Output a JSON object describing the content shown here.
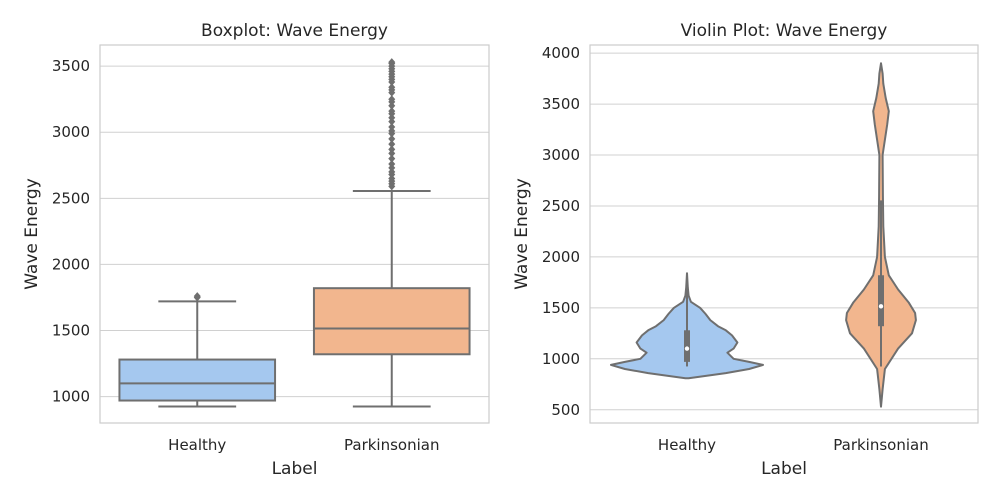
{
  "colors": {
    "healthy": "#a5c8ef",
    "parkinsonian": "#f2b68e",
    "line": "#6f6f6f",
    "grid": "#d0d0d0",
    "frame": "#cccccc"
  },
  "chart_data": [
    {
      "type": "box",
      "title": "Boxplot: Wave Energy",
      "xlabel": "Label",
      "ylabel": "Wave Energy",
      "categories": [
        "Healthy",
        "Parkinsonian"
      ],
      "ylim": [
        800,
        3660
      ],
      "yticks": [
        1000,
        1500,
        2000,
        2500,
        3000,
        3500
      ],
      "grid": "horizontal",
      "boxes": [
        {
          "name": "Healthy",
          "whisker_low": 925,
          "q1": 970,
          "median": 1100,
          "q3": 1280,
          "whisker_high": 1720,
          "outliers": [
            1750,
            1760
          ]
        },
        {
          "name": "Parkinsonian",
          "whisker_low": 925,
          "q1": 1320,
          "median": 1515,
          "q3": 1820,
          "whisker_high": 2555,
          "outliers": [
            2590,
            2610,
            2630,
            2650,
            2680,
            2700,
            2730,
            2760,
            2800,
            2840,
            2870,
            2910,
            2950,
            2990,
            3010,
            3040,
            3080,
            3110,
            3140,
            3160,
            3200,
            3230,
            3250,
            3300,
            3320,
            3340,
            3380,
            3400,
            3420,
            3440,
            3460,
            3480,
            3500,
            3520,
            3530
          ]
        }
      ]
    },
    {
      "type": "violin",
      "title": "Violin Plot: Wave Energy",
      "xlabel": "Label",
      "ylabel": "Wave Energy",
      "categories": [
        "Healthy",
        "Parkinsonian"
      ],
      "ylim": [
        370,
        4080
      ],
      "yticks": [
        500,
        1000,
        1500,
        2000,
        2500,
        3000,
        3500,
        4000
      ],
      "grid": "horizontal",
      "violins": [
        {
          "name": "Healthy",
          "profile": [
            [
              810,
              0.02
            ],
            [
              860,
              0.5
            ],
            [
              900,
              0.8
            ],
            [
              940,
              0.98
            ],
            [
              970,
              0.8
            ],
            [
              1000,
              0.6
            ],
            [
              1060,
              0.52
            ],
            [
              1100,
              0.6
            ],
            [
              1160,
              0.65
            ],
            [
              1230,
              0.58
            ],
            [
              1280,
              0.5
            ],
            [
              1320,
              0.4
            ],
            [
              1380,
              0.3
            ],
            [
              1440,
              0.24
            ],
            [
              1500,
              0.17
            ],
            [
              1560,
              0.05
            ],
            [
              1620,
              0.02
            ],
            [
              1700,
              0.01
            ],
            [
              1840,
              0.0
            ]
          ],
          "q1": 970,
          "median": 1100,
          "q3": 1280,
          "whisker_low": 925,
          "whisker_high": 1720
        },
        {
          "name": "Parkinsonian",
          "profile": [
            [
              530,
              0.0
            ],
            [
              700,
              0.02
            ],
            [
              900,
              0.05
            ],
            [
              1100,
              0.22
            ],
            [
              1250,
              0.4
            ],
            [
              1380,
              0.45
            ],
            [
              1450,
              0.44
            ],
            [
              1550,
              0.36
            ],
            [
              1680,
              0.22
            ],
            [
              1820,
              0.1
            ],
            [
              2000,
              0.05
            ],
            [
              2300,
              0.03
            ],
            [
              2600,
              0.025
            ],
            [
              3000,
              0.02
            ],
            [
              3300,
              0.08
            ],
            [
              3430,
              0.1
            ],
            [
              3560,
              0.06
            ],
            [
              3700,
              0.03
            ],
            [
              3800,
              0.02
            ],
            [
              3900,
              0.0
            ]
          ],
          "q1": 1320,
          "median": 1515,
          "q3": 1820,
          "whisker_low": 925,
          "whisker_high": 2555
        }
      ]
    }
  ]
}
